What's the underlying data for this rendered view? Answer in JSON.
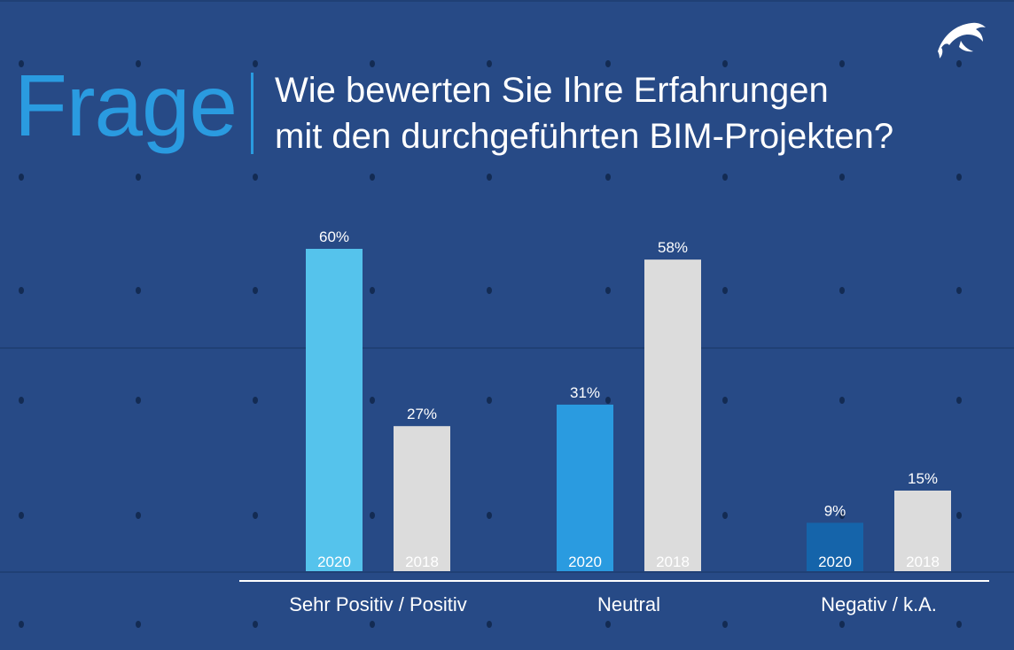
{
  "header": {
    "label": "Frage",
    "question_line1": "Wie bewerten Sie Ihre Erfahrungen",
    "question_line2": "mit den durchgeführten BIM-Projekten?"
  },
  "logo_icon": "dolphin-icon",
  "colors": {
    "background": "#274a86",
    "accent": "#2a9be0",
    "bar_2020_positive": "#55c3ec",
    "bar_2020_neutral": "#2a9be0",
    "bar_2020_negative": "#1564aa",
    "bar_2018": "#dcdcdc"
  },
  "chart_data": {
    "type": "bar",
    "categories": [
      "Sehr Positiv / Positiv",
      "Neutral",
      "Negativ / k.A."
    ],
    "series": [
      {
        "name": "2020",
        "values": [
          60,
          31,
          9
        ]
      },
      {
        "name": "2018",
        "values": [
          27,
          58,
          15
        ]
      }
    ],
    "data_labels": [
      [
        "60%",
        "31%",
        "9%"
      ],
      [
        "27%",
        "58%",
        "15%"
      ]
    ],
    "unit": "%",
    "ylim": [
      0,
      60
    ],
    "grid": false,
    "legend": "none (series names printed inside bars)"
  }
}
